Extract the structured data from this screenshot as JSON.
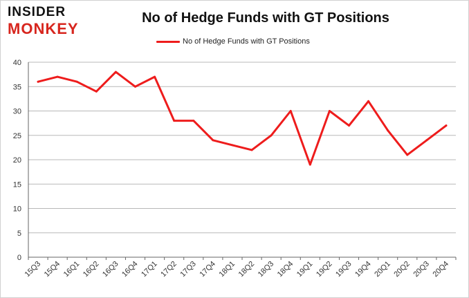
{
  "logo": {
    "line1": "INSIDER",
    "line2": "MONKEY"
  },
  "colors": {
    "series": "#ee1c1c",
    "grid": "#b8b8b8",
    "axis": "#666666",
    "logo_accent": "#d7261e"
  },
  "chart_data": {
    "type": "line",
    "title": "No of Hedge Funds with GT Positions",
    "xlabel": "",
    "ylabel": "",
    "ylim": [
      0,
      40
    ],
    "yticks": [
      0,
      5,
      10,
      15,
      20,
      25,
      30,
      35,
      40
    ],
    "grid": true,
    "legend_position": "top-center",
    "categories": [
      "15Q3",
      "15Q4",
      "16Q1",
      "16Q2",
      "16Q3",
      "16Q4",
      "17Q1",
      "17Q2",
      "17Q3",
      "17Q4",
      "18Q1",
      "18Q2",
      "18Q3",
      "18Q4",
      "19Q1",
      "19Q2",
      "19Q3",
      "19Q4",
      "20Q1",
      "20Q2",
      "20Q3",
      "20Q4"
    ],
    "series": [
      {
        "name": "No of Hedge Funds with GT Positions",
        "values": [
          36,
          37,
          36,
          34,
          38,
          35,
          37,
          28,
          28,
          24,
          23,
          22,
          25,
          30,
          19,
          30,
          27,
          32,
          26,
          21,
          24,
          27
        ]
      }
    ]
  }
}
